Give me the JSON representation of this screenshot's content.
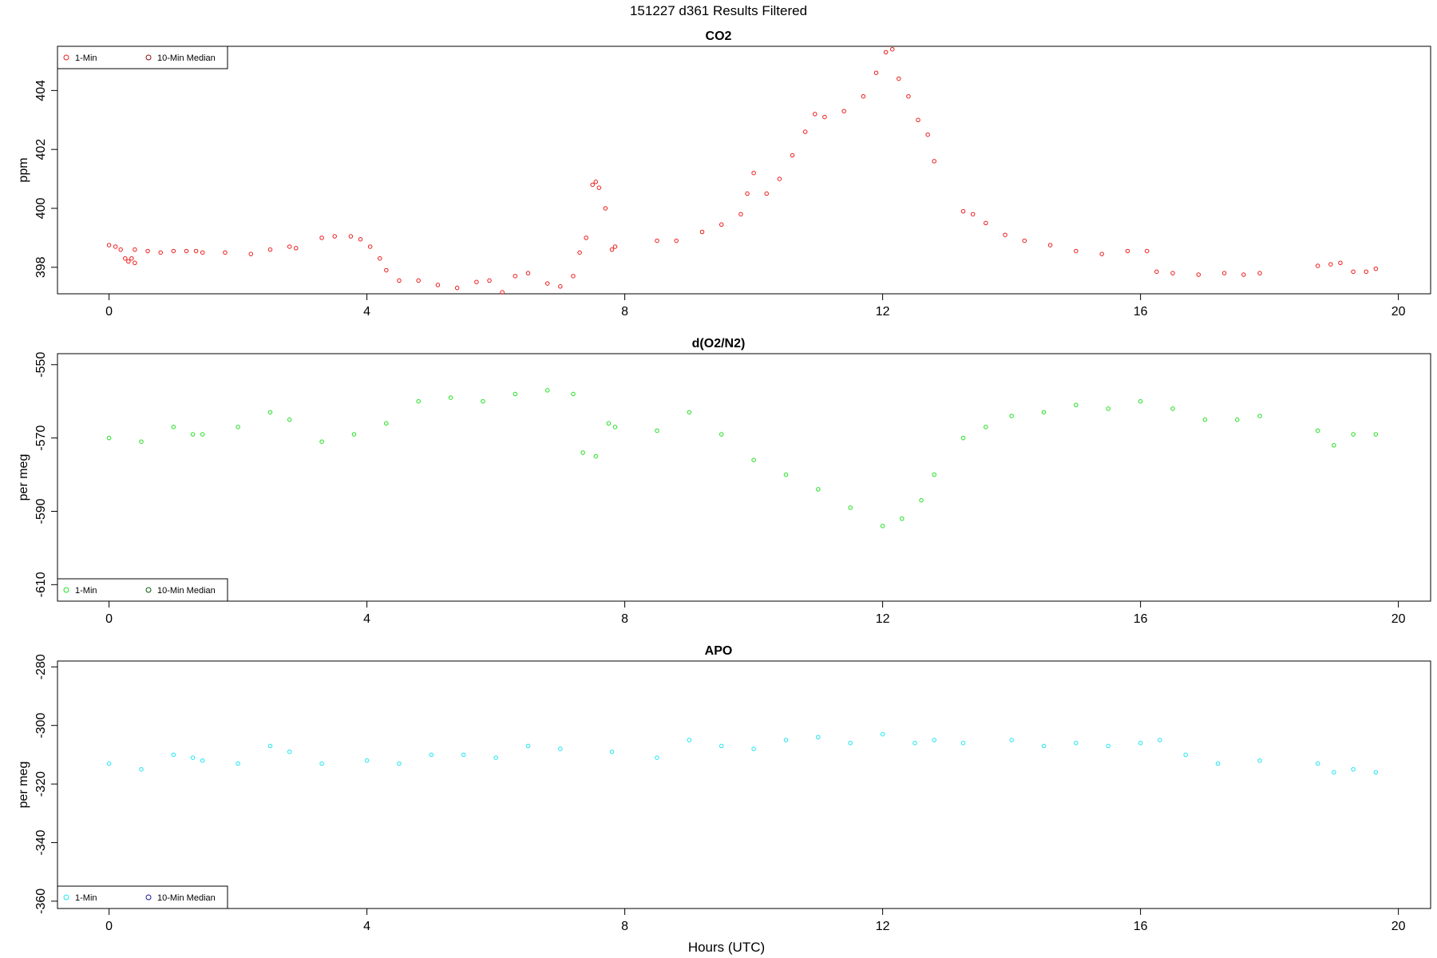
{
  "page": {
    "title": "151227   d361   Results Filtered",
    "xlabel": "Hours (UTC)"
  },
  "colors": {
    "co2_1min": "#ee1c1c",
    "co2_median": "#8b1010",
    "o2_1min": "#22e022",
    "o2_median": "#0b5c0b",
    "apo_1min": "#1ee6f0",
    "apo_median": "#1a1a8c"
  },
  "chart_data": [
    {
      "type": "scatter",
      "title": "CO2",
      "xlabel": "",
      "ylabel": "ppm",
      "xlim": [
        -0.8,
        20.5
      ],
      "ylim": [
        397.1,
        405.5
      ],
      "xticks": [
        0,
        4,
        8,
        12,
        16,
        20
      ],
      "yticks": [
        398,
        400,
        402,
        404
      ],
      "legend_position": "top-left",
      "legend": [
        {
          "label": "1-Min",
          "color_key": "co2_1min"
        },
        {
          "label": "10-Min Median",
          "color_key": "co2_median"
        }
      ],
      "series": [
        {
          "name": "1-Min",
          "color_key": "co2_1min",
          "marker_scale": 0.75,
          "segments": [
            {
              "x": [
                0.0,
                0.1,
                0.18,
                0.25,
                0.3,
                0.35,
                0.4
              ],
              "y": [
                398.75,
                398.7,
                398.6,
                398.3,
                398.2,
                398.3,
                398.15
              ]
            },
            {
              "x": [
                0.4,
                0.6,
                0.8,
                1.0,
                1.2,
                1.35
              ],
              "y": [
                398.6,
                398.55,
                398.5,
                398.55,
                398.55,
                398.55
              ]
            },
            {
              "x": [
                1.45,
                1.8,
                2.2,
                2.5,
                2.8,
                2.9
              ],
              "y": [
                398.5,
                398.5,
                398.45,
                398.6,
                398.7,
                398.65
              ]
            },
            {
              "x": [
                3.3,
                3.5,
                3.75,
                3.9,
                4.05,
                4.2,
                4.3,
                4.5,
                4.8,
                5.1,
                5.4,
                5.7,
                5.9,
                6.1,
                6.3,
                6.5,
                6.8,
                7.0,
                7.2
              ],
              "y": [
                399.0,
                399.05,
                399.05,
                398.95,
                398.7,
                398.3,
                397.9,
                397.55,
                397.55,
                397.4,
                397.3,
                397.5,
                397.55,
                397.15,
                397.7,
                397.8,
                397.45,
                397.35,
                397.7
              ]
            },
            {
              "x": [
                7.3,
                7.4,
                7.5,
                7.55,
                7.6,
                7.7,
                7.8,
                7.85
              ],
              "y": [
                398.5,
                399.0,
                400.8,
                400.9,
                400.7,
                400.0,
                398.6,
                398.7
              ]
            },
            {
              "x": [
                8.5,
                8.8,
                9.2,
                9.5,
                9.8,
                9.9,
                10.0,
                10.2,
                10.4,
                10.6,
                10.8,
                10.95,
                11.1,
                11.4,
                11.7,
                11.9,
                12.05,
                12.15,
                12.25,
                12.4,
                12.55,
                12.7,
                12.8
              ],
              "y": [
                398.9,
                398.9,
                399.2,
                399.45,
                399.8,
                400.5,
                401.2,
                400.5,
                401.0,
                401.8,
                402.6,
                403.2,
                403.1,
                403.3,
                403.8,
                404.6,
                405.3,
                405.4,
                404.4,
                403.8,
                403.0,
                402.5,
                401.6
              ]
            },
            {
              "x": [
                13.25,
                13.4,
                13.6,
                13.9,
                14.2,
                14.6,
                15.0,
                15.4,
                15.8,
                16.1,
                16.25,
                16.5,
                16.9,
                17.3,
                17.6,
                17.85
              ],
              "y": [
                399.9,
                399.8,
                399.5,
                399.1,
                398.9,
                398.75,
                398.55,
                398.45,
                398.55,
                398.55,
                397.85,
                397.8,
                397.75,
                397.8,
                397.75,
                397.8
              ]
            },
            {
              "x": [
                18.75,
                18.95,
                19.1,
                19.3,
                19.5,
                19.65
              ],
              "y": [
                398.05,
                398.1,
                398.15,
                397.85,
                397.85,
                397.95
              ]
            }
          ]
        }
      ]
    },
    {
      "type": "scatter",
      "title": "d(O2/N2)",
      "xlabel": "",
      "ylabel": "per meg",
      "xlim": [
        -0.8,
        20.5
      ],
      "ylim": [
        -614.5,
        -547.0
      ],
      "xticks": [
        0,
        4,
        8,
        12,
        16,
        20
      ],
      "yticks": [
        -550,
        -570,
        -590,
        -610
      ],
      "legend_position": "bottom-left",
      "legend": [
        {
          "label": "1-Min",
          "color_key": "o2_1min"
        },
        {
          "label": "10-Min Median",
          "color_key": "o2_median"
        }
      ],
      "series": [
        {
          "name": "1-Min",
          "color_key": "o2_1min",
          "marker_scale": 0.75,
          "segments": [
            {
              "x": [
                0.0,
                0.5,
                1.0,
                1.3
              ],
              "y": [
                -570,
                -571,
                -567,
                -569
              ]
            },
            {
              "x": [
                1.45,
                2.0,
                2.5,
                2.8
              ],
              "y": [
                -569,
                -567,
                -563,
                -565
              ]
            },
            {
              "x": [
                3.3,
                3.8,
                4.3,
                4.8,
                5.3,
                5.8,
                6.3,
                6.8,
                7.2
              ],
              "y": [
                -571,
                -569,
                -566,
                -560,
                -559,
                -560,
                -558,
                -557,
                -558
              ]
            },
            {
              "x": [
                7.35,
                7.55,
                7.75,
                7.85
              ],
              "y": [
                -574,
                -575,
                -566,
                -567
              ]
            },
            {
              "x": [
                8.5,
                9.0,
                9.5,
                10.0,
                10.5,
                11.0,
                11.5,
                12.0,
                12.3,
                12.6,
                12.8
              ],
              "y": [
                -568,
                -563,
                -569,
                -576,
                -580,
                -584,
                -589,
                -594,
                -592,
                -587,
                -580
              ]
            },
            {
              "x": [
                13.25,
                13.6,
                14.0,
                14.5,
                15.0,
                15.5,
                16.0,
                16.5,
                17.0,
                17.5,
                17.85
              ],
              "y": [
                -570,
                -567,
                -564,
                -563,
                -561,
                -562,
                -560,
                -562,
                -565,
                -565,
                -564
              ]
            },
            {
              "x": [
                18.75,
                19.0,
                19.3,
                19.65
              ],
              "y": [
                -568,
                -572,
                -569,
                -569
              ]
            }
          ]
        }
      ]
    },
    {
      "type": "scatter",
      "title": "APO",
      "xlabel": "Hours (UTC)",
      "ylabel": "per meg",
      "xlim": [
        -0.8,
        20.5
      ],
      "ylim": [
        -362.5,
        -278.0
      ],
      "xticks": [
        0,
        4,
        8,
        12,
        16,
        20
      ],
      "yticks": [
        -280,
        -300,
        -320,
        -340,
        -360
      ],
      "legend_position": "bottom-left",
      "legend": [
        {
          "label": "1-Min",
          "color_key": "apo_1min"
        },
        {
          "label": "10-Min Median",
          "color_key": "apo_median"
        }
      ],
      "series": [
        {
          "name": "1-Min",
          "color_key": "apo_1min",
          "marker_scale": 0.75,
          "segments": [
            {
              "x": [
                0.0,
                0.5,
                1.0,
                1.3
              ],
              "y": [
                -313,
                -315,
                -310,
                -311
              ]
            },
            {
              "x": [
                1.45,
                2.0,
                2.5,
                2.8
              ],
              "y": [
                -312,
                -313,
                -307,
                -309
              ]
            },
            {
              "x": [
                3.3,
                4.0,
                4.5,
                5.0,
                5.5,
                6.0,
                6.5,
                7.0,
                7.8
              ],
              "y": [
                -313,
                -312,
                -313,
                -310,
                -310,
                -311,
                -307,
                -308,
                -309
              ]
            },
            {
              "x": [
                8.5,
                9.0,
                9.5,
                10.0,
                10.5,
                11.0,
                11.5,
                12.0,
                12.5,
                12.8
              ],
              "y": [
                -311,
                -305,
                -307,
                -308,
                -305,
                -304,
                -306,
                -303,
                -306,
                -305
              ]
            },
            {
              "x": [
                13.25,
                14.0,
                14.5,
                15.0,
                15.5,
                16.0,
                16.3,
                16.7,
                17.2,
                17.85
              ],
              "y": [
                -306,
                -305,
                -307,
                -306,
                -307,
                -306,
                -305,
                -310,
                -313,
                -312
              ]
            },
            {
              "x": [
                18.75,
                19.0,
                19.3,
                19.65
              ],
              "y": [
                -313,
                -316,
                -315,
                -316
              ]
            }
          ]
        }
      ]
    }
  ]
}
